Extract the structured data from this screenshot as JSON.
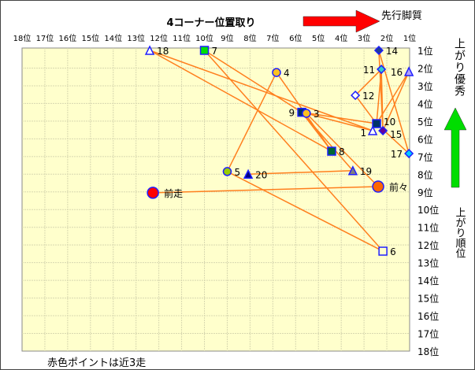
{
  "chart_data": {
    "type": "scatter",
    "title": "4コーナー位置取り",
    "top_arrow_label": "先行脚質",
    "right_top_label": "上がり優秀",
    "right_bottom_label": "上がり順位",
    "footnote": "赤色ポイントは近3走",
    "x_ticks": [
      "18位",
      "17位",
      "16位",
      "15位",
      "14位",
      "13位",
      "12位",
      "11位",
      "10位",
      "9位",
      "8位",
      "7位",
      "6位",
      "5位",
      "4位",
      "3位",
      "2位",
      "1位"
    ],
    "y_ticks": [
      "1位",
      "2位",
      "3位",
      "4位",
      "5位",
      "6位",
      "7位",
      "8位",
      "9位",
      "10位",
      "11位",
      "12位",
      "13位",
      "14位",
      "15位",
      "16位",
      "17位",
      "18位"
    ],
    "xlim": [
      18,
      1
    ],
    "ylim": [
      1,
      18
    ],
    "grid": true,
    "colors": {
      "plot_bg": "#ffffcc",
      "line": "#ff7f1e",
      "marker_edge": "#1f1fff",
      "arrow_red": "#ff0000",
      "arrow_green": "#00dd00"
    },
    "points": [
      {
        "label": "18",
        "corner": 12.4,
        "agari": 1.0,
        "shape": "triangle",
        "fill": "#ffffff"
      },
      {
        "label": "7",
        "corner": 10.0,
        "agari": 1.0,
        "shape": "square",
        "fill": "#00e000"
      },
      {
        "label": "14",
        "corner": 2.35,
        "agari": 1.0,
        "shape": "diamond",
        "fill": "#1f3a9a"
      },
      {
        "label": "11",
        "corner": 2.24,
        "agari": 2.07,
        "shape": "diamond",
        "fill": "#33cccc"
      },
      {
        "label": "16",
        "corner": 1.03,
        "agari": 2.2,
        "shape": "triangle",
        "fill": "#b0a0ff"
      },
      {
        "label": "4",
        "corner": 6.84,
        "agari": 2.25,
        "shape": "circle",
        "fill": "#ffc020"
      },
      {
        "label": "12",
        "corner": 3.38,
        "agari": 3.54,
        "shape": "diamond",
        "fill": "#ffffff"
      },
      {
        "label": "9",
        "corner": 5.73,
        "agari": 4.5,
        "shape": "square",
        "fill": "#003366"
      },
      {
        "label": "3",
        "corner": 5.53,
        "agari": 4.56,
        "shape": "circle",
        "fill": "#ffc020"
      },
      {
        "label": "10",
        "corner": 2.45,
        "agari": 5.14,
        "shape": "square",
        "fill": "#003366"
      },
      {
        "label": "1",
        "corner": 2.62,
        "agari": 5.54,
        "shape": "triangle",
        "fill": "#ffffff"
      },
      {
        "label": "15",
        "corner": 2.17,
        "agari": 5.54,
        "shape": "diamond",
        "fill": "#660099"
      },
      {
        "label": "17",
        "corner": 1.03,
        "agari": 6.83,
        "shape": "diamond",
        "fill": "#00ccff"
      },
      {
        "label": "8",
        "corner": 4.42,
        "agari": 6.7,
        "shape": "square",
        "fill": "#006633"
      },
      {
        "label": "19",
        "corner": 3.49,
        "agari": 7.8,
        "shape": "triangle",
        "fill": "#808080"
      },
      {
        "label": "5",
        "corner": 9.0,
        "agari": 7.85,
        "shape": "circle",
        "fill": "#99cc00"
      },
      {
        "label": "20",
        "corner": 8.08,
        "agari": 8.0,
        "shape": "triangle",
        "fill": "#000080"
      },
      {
        "label": "前々",
        "corner": 2.38,
        "agari": 8.7,
        "shape": "circle-large",
        "fill": "#ff6600"
      },
      {
        "label": "前走",
        "corner": 12.26,
        "agari": 9.05,
        "shape": "circle-large",
        "fill": "#ff0000"
      },
      {
        "label": "6",
        "corner": 2.17,
        "agari": 12.35,
        "shape": "square",
        "fill": "#ffffcc"
      }
    ],
    "links": [
      [
        "18",
        "1"
      ],
      [
        "18",
        "8"
      ],
      [
        "7",
        "9"
      ],
      [
        "7",
        "6"
      ],
      [
        "4",
        "5"
      ],
      [
        "4",
        "8"
      ],
      [
        "5",
        "6"
      ],
      [
        "20",
        "19"
      ],
      [
        "前走",
        "前々"
      ],
      [
        "14",
        "17"
      ],
      [
        "14",
        "15"
      ],
      [
        "11",
        "10"
      ],
      [
        "11",
        "12"
      ],
      [
        "11",
        "15"
      ],
      [
        "16",
        "10"
      ],
      [
        "16",
        "15"
      ],
      [
        "12",
        "10"
      ],
      [
        "9",
        "10"
      ],
      [
        "3",
        "1"
      ],
      [
        "9",
        "8"
      ],
      [
        "3",
        "前々"
      ],
      [
        "10",
        "17"
      ],
      [
        "9",
        "19"
      ]
    ]
  }
}
